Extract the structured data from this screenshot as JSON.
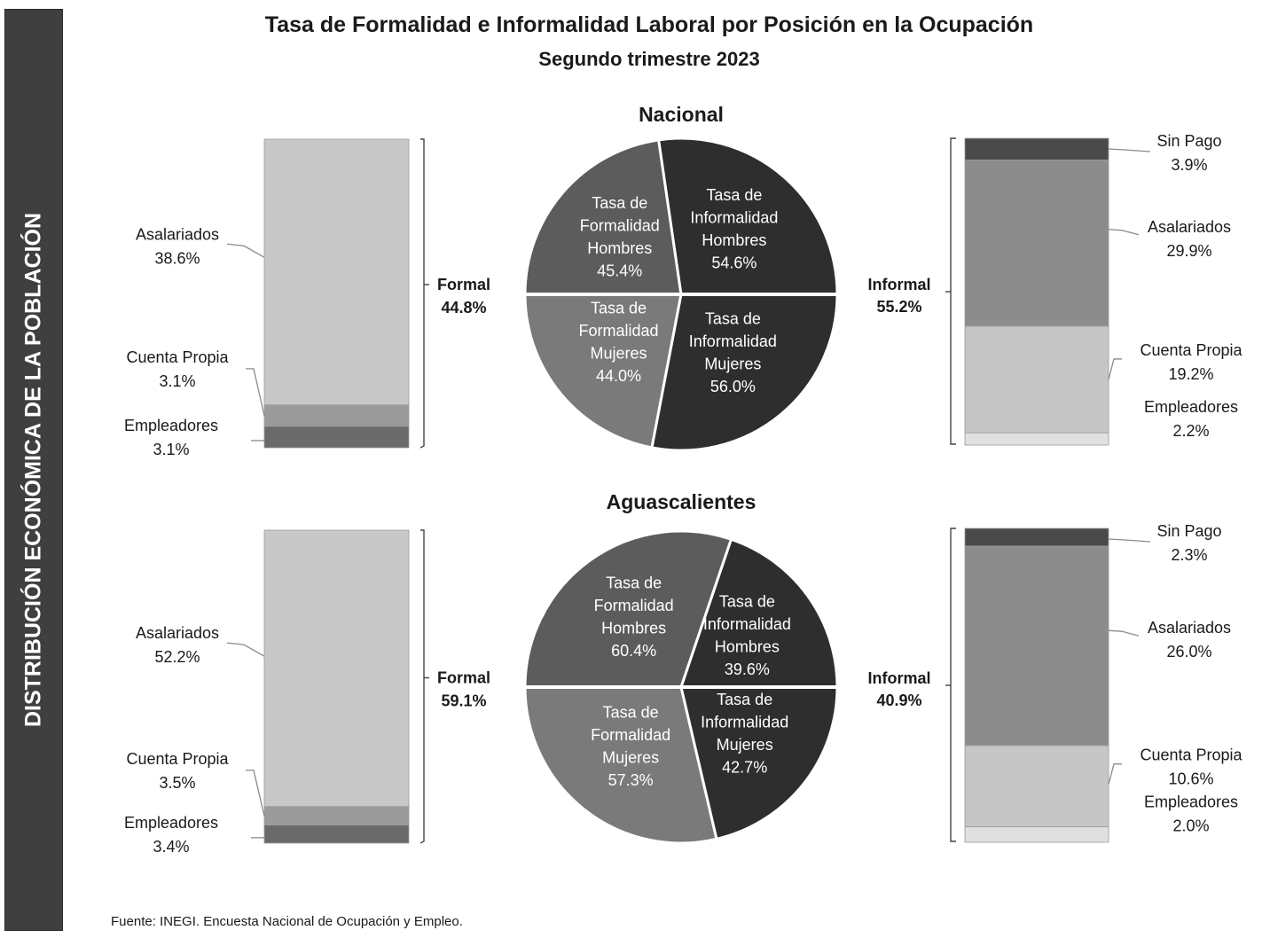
{
  "sidebar_text": "DISTRIBUCIÓN ECONÓMICA DE LA POBLACIÓN",
  "title": "Tasa de Formalidad e Informalidad Laboral por Posición en la Ocupación",
  "subtitle": "Segundo trimestre 2023",
  "source": "Fuente: INEGI. Encuesta Nacional de Ocupación y Empleo.",
  "colors": {
    "sidebar": "#3f3f3f",
    "formal_asalariados": "#c8c8c8",
    "formal_cuenta_propia": "#9a9a9a",
    "formal_empleadores": "#6a6a6a",
    "informal_sin_pago": "#4a4a4a",
    "informal_asalariados": "#8c8c8c",
    "informal_cuenta_propia": "#c6c6c6",
    "informal_empleadores": "#e0e0e0",
    "pie_formal_hombres": "#5c5c5c",
    "pie_formal_mujeres": "#7a7a7a",
    "pie_informal": "#2e2e2e"
  },
  "chart_data": [
    {
      "region": "Nacional",
      "formal": {
        "type": "bar",
        "stacked": true,
        "label": "Formal",
        "total_label": "44.8%",
        "total": 44.8,
        "segments": [
          {
            "name": "Asalariados",
            "value": 38.6,
            "label": "38.6%",
            "color_key": "formal_asalariados"
          },
          {
            "name": "Cuenta Propia",
            "value": 3.1,
            "label": "3.1%",
            "color_key": "formal_cuenta_propia"
          },
          {
            "name": "Empleadores",
            "value": 3.1,
            "label": "3.1%",
            "color_key": "formal_empleadores"
          }
        ]
      },
      "pie": {
        "type": "pie",
        "hombres": {
          "formal": {
            "lines": [
              "Tasa de",
              "Formalidad",
              "Hombres"
            ],
            "value": 45.4,
            "label": "45.4%"
          },
          "informal": {
            "lines": [
              "Tasa de",
              "Informalidad",
              "Hombres"
            ],
            "value": 54.6,
            "label": "54.6%"
          }
        },
        "mujeres": {
          "formal": {
            "lines": [
              "Tasa de",
              "Formalidad",
              "Mujeres"
            ],
            "value": 44.0,
            "label": "44.0%"
          },
          "informal": {
            "lines": [
              "Tasa de",
              "Informalidad",
              "Mujeres"
            ],
            "value": 56.0,
            "label": "56.0%"
          }
        }
      },
      "informal": {
        "type": "bar",
        "stacked": true,
        "label": "Informal",
        "total_label": "55.2%",
        "total": 55.2,
        "segments": [
          {
            "name": "Sin Pago",
            "value": 3.9,
            "label": "3.9%",
            "color_key": "informal_sin_pago"
          },
          {
            "name": "Asalariados",
            "value": 29.9,
            "label": "29.9%",
            "color_key": "informal_asalariados"
          },
          {
            "name": "Cuenta Propia",
            "value": 19.2,
            "label": "19.2%",
            "color_key": "informal_cuenta_propia"
          },
          {
            "name": "Empleadores",
            "value": 2.2,
            "label": "2.2%",
            "color_key": "informal_empleadores"
          }
        ]
      }
    },
    {
      "region": "Aguascalientes",
      "formal": {
        "type": "bar",
        "stacked": true,
        "label": "Formal",
        "total_label": "59.1%",
        "total": 59.1,
        "segments": [
          {
            "name": "Asalariados",
            "value": 52.2,
            "label": "52.2%",
            "color_key": "formal_asalariados"
          },
          {
            "name": "Cuenta Propia",
            "value": 3.5,
            "label": "3.5%",
            "color_key": "formal_cuenta_propia"
          },
          {
            "name": "Empleadores",
            "value": 3.4,
            "label": "3.4%",
            "color_key": "formal_empleadores"
          }
        ]
      },
      "pie": {
        "type": "pie",
        "hombres": {
          "formal": {
            "lines": [
              "Tasa de",
              "Formalidad",
              "Hombres"
            ],
            "value": 60.4,
            "label": "60.4%"
          },
          "informal": {
            "lines": [
              "Tasa de",
              "Informalidad",
              "Hombres"
            ],
            "value": 39.6,
            "label": "39.6%"
          }
        },
        "mujeres": {
          "formal": {
            "lines": [
              "Tasa de",
              "Formalidad",
              "Mujeres"
            ],
            "value": 57.3,
            "label": "57.3%"
          },
          "informal": {
            "lines": [
              "Tasa de",
              "Informalidad",
              "Mujeres"
            ],
            "value": 42.7,
            "label": "42.7%"
          }
        }
      },
      "informal": {
        "type": "bar",
        "stacked": true,
        "label": "Informal",
        "total_label": "40.9%",
        "total": 40.9,
        "segments": [
          {
            "name": "Sin Pago",
            "value": 2.3,
            "label": "2.3%",
            "color_key": "informal_sin_pago"
          },
          {
            "name": "Asalariados",
            "value": 26.0,
            "label": "26.0%",
            "color_key": "informal_asalariados"
          },
          {
            "name": "Cuenta Propia",
            "value": 10.6,
            "label": "10.6%",
            "color_key": "informal_cuenta_propia"
          },
          {
            "name": "Empleadores",
            "value": 2.0,
            "label": "2.0%",
            "color_key": "informal_empleadores"
          }
        ]
      }
    }
  ]
}
